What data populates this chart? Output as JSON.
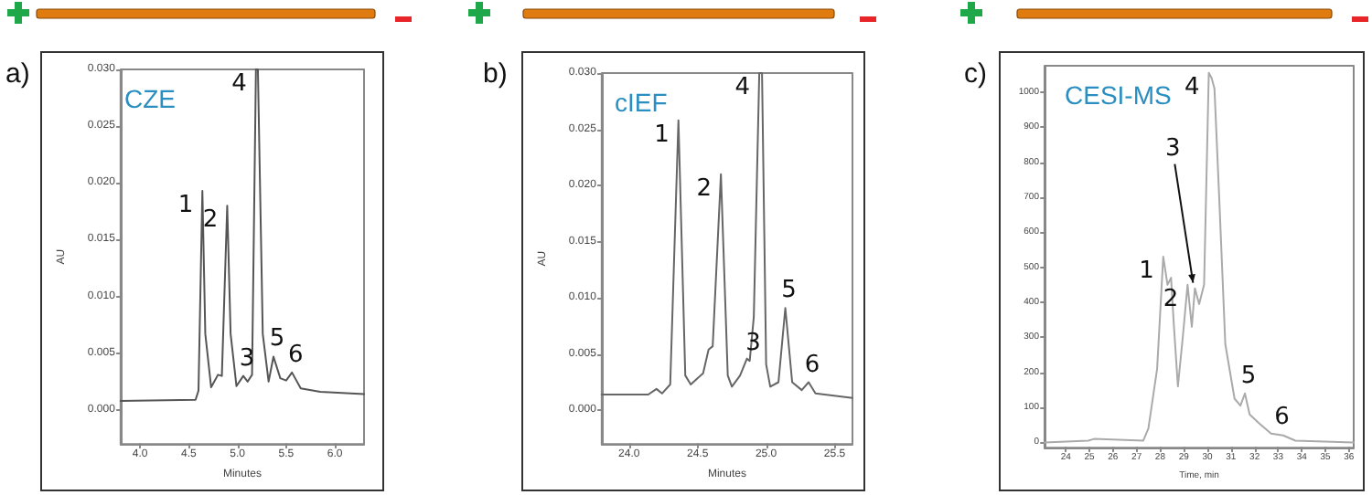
{
  "chart_data": [
    {
      "type": "line",
      "title": "CZE",
      "xlabel": "Minutes",
      "ylabel": "AU",
      "line_style": "solid",
      "marker": "none",
      "xlim": [
        3.8,
        6.3
      ],
      "xticks": [
        {
          "value": 4,
          "label": "4.0"
        },
        4.5,
        {
          "value": 5,
          "label": "5.0"
        },
        5.5,
        {
          "value": 6,
          "label": "6.0"
        }
      ],
      "ylim": [
        -0.003,
        0.03
      ],
      "yticks": [
        {
          "value": 0,
          "label": "0.000"
        },
        {
          "value": 0.005,
          "label": "0.005"
        },
        {
          "value": 0.01,
          "label": "0.010"
        },
        {
          "value": 0.015,
          "label": "0.015"
        },
        {
          "value": 0.02,
          "label": "0.020"
        },
        {
          "value": 0.025,
          "label": "0.025"
        },
        {
          "value": 0.03,
          "label": "0.030"
        }
      ],
      "series": [
        {
          "color": "#555555",
          "x": [
            3.8,
            4.57,
            4.6,
            4.64,
            4.67,
            4.73,
            4.8,
            4.84,
            4.895,
            4.93,
            4.99,
            5.06,
            5.105,
            5.15,
            5.19,
            5.21,
            5.26,
            5.32,
            5.37,
            5.44,
            5.5,
            5.56,
            5.65,
            5.85,
            6.3
          ],
          "values": [
            0.0008,
            0.0009,
            0.0017,
            0.0193,
            0.0067,
            0.002,
            0.0031,
            0.003,
            0.018,
            0.0067,
            0.0021,
            0.003,
            0.0025,
            0.0031,
            0.03,
            0.03,
            0.0067,
            0.0025,
            0.0047,
            0.0028,
            0.0026,
            0.0033,
            0.0019,
            0.0016,
            0.0014
          ]
        }
      ],
      "annotations": [
        "a)",
        {
          "text": "1",
          "x": 4.64,
          "y": 0.0193
        },
        {
          "text": "2",
          "x": 4.895,
          "y": 0.018
        },
        {
          "text": "3",
          "x": 5.06,
          "y": 0.003
        },
        {
          "text": "4",
          "x": 5.19,
          "y": 0.03
        },
        {
          "text": "5",
          "x": 5.37,
          "y": 0.0047
        },
        {
          "text": "6",
          "x": 5.56,
          "y": 0.0033
        }
      ]
    },
    {
      "type": "line",
      "title": "cIEF",
      "xlabel": "Minutes",
      "ylabel": "AU",
      "line_style": "solid",
      "marker": "none",
      "xlim": [
        23.8,
        25.63
      ],
      "xticks": [
        {
          "value": 24,
          "label": "24.0"
        },
        24.5,
        {
          "value": 25,
          "label": "25.0"
        },
        25.5
      ],
      "ylim": [
        -0.003,
        0.03
      ],
      "yticks": [
        {
          "value": 0,
          "label": "0.000"
        },
        {
          "value": 0.005,
          "label": "0.005"
        },
        {
          "value": 0.01,
          "label": "0.010"
        },
        {
          "value": 0.015,
          "label": "0.015"
        },
        {
          "value": 0.02,
          "label": "0.020"
        },
        {
          "value": 0.025,
          "label": "0.025"
        },
        {
          "value": 0.03,
          "label": "0.030"
        }
      ],
      "series": [
        {
          "color": "#666666",
          "x": [
            23.8,
            24.14,
            24.2,
            24.24,
            24.3,
            24.36,
            24.41,
            24.45,
            24.54,
            24.58,
            24.61,
            24.67,
            24.72,
            24.75,
            24.81,
            24.86,
            24.88,
            24.91,
            24.95,
            24.97,
            25.0,
            25.03,
            25.09,
            25.14,
            25.19,
            25.26,
            25.31,
            25.36,
            25.63
          ],
          "values": [
            0.0014,
            0.0014,
            0.0019,
            0.0015,
            0.0023,
            0.0258,
            0.0031,
            0.0023,
            0.0033,
            0.0054,
            0.0057,
            0.021,
            0.0031,
            0.0021,
            0.0031,
            0.0046,
            0.0044,
            0.0083,
            0.03,
            0.03,
            0.0041,
            0.0021,
            0.0025,
            0.0091,
            0.0025,
            0.0018,
            0.0025,
            0.0015,
            0.0011
          ]
        }
      ],
      "annotations": [
        "b)",
        {
          "text": "1",
          "x": 24.36,
          "y": 0.0258
        },
        {
          "text": "2",
          "x": 24.67,
          "y": 0.021
        },
        {
          "text": "3",
          "x": 24.88,
          "y": 0.0044
        },
        {
          "text": "4",
          "x": 24.95,
          "y": 0.03
        },
        {
          "text": "5",
          "x": 25.14,
          "y": 0.0091
        },
        {
          "text": "6",
          "x": 25.31,
          "y": 0.0025
        }
      ]
    },
    {
      "type": "line",
      "title": "CESI-MS",
      "xlabel": "Time, min",
      "line_style": "solid",
      "marker": "none",
      "xlim": [
        23.1,
        36.2
      ],
      "xticks": [
        24,
        25,
        26,
        27,
        28,
        29,
        30,
        31,
        32,
        33,
        34,
        35,
        36
      ],
      "ylim": [
        -15,
        1075
      ],
      "yticks": [
        0,
        100,
        200,
        300,
        400,
        500,
        600,
        700,
        800,
        900,
        1000
      ],
      "series": [
        {
          "color": "#aaaaaa",
          "x": [
            23.1,
            24.95,
            25.2,
            27.28,
            27.5,
            27.87,
            28.13,
            28.31,
            28.46,
            28.57,
            28.75,
            28.95,
            29.16,
            29.34,
            29.47,
            29.65,
            29.86,
            30.06,
            30.18,
            30.3,
            30.5,
            30.76,
            31.15,
            31.4,
            31.59,
            31.79,
            32.18,
            32.7,
            33.21,
            33.73,
            36.2
          ],
          "values": [
            0,
            5,
            10,
            5,
            40,
            210,
            530,
            450,
            470,
            345,
            160,
            295,
            450,
            330,
            440,
            395,
            450,
            1055,
            1040,
            1010,
            700,
            280,
            125,
            105,
            140,
            80,
            55,
            25,
            20,
            5,
            0
          ]
        }
      ],
      "annotations": [
        "c)",
        {
          "text": "1",
          "x": 28.13,
          "y": 530
        },
        {
          "text": "2",
          "x": 29.16,
          "y": 450
        },
        {
          "text": "3",
          "x": 29.47,
          "y": 440
        },
        {
          "text": "4",
          "x": 30.06,
          "y": 1055
        },
        {
          "text": "5",
          "x": 31.59,
          "y": 140
        },
        {
          "text": "6",
          "x": 33.0,
          "y": 22
        }
      ]
    }
  ]
}
